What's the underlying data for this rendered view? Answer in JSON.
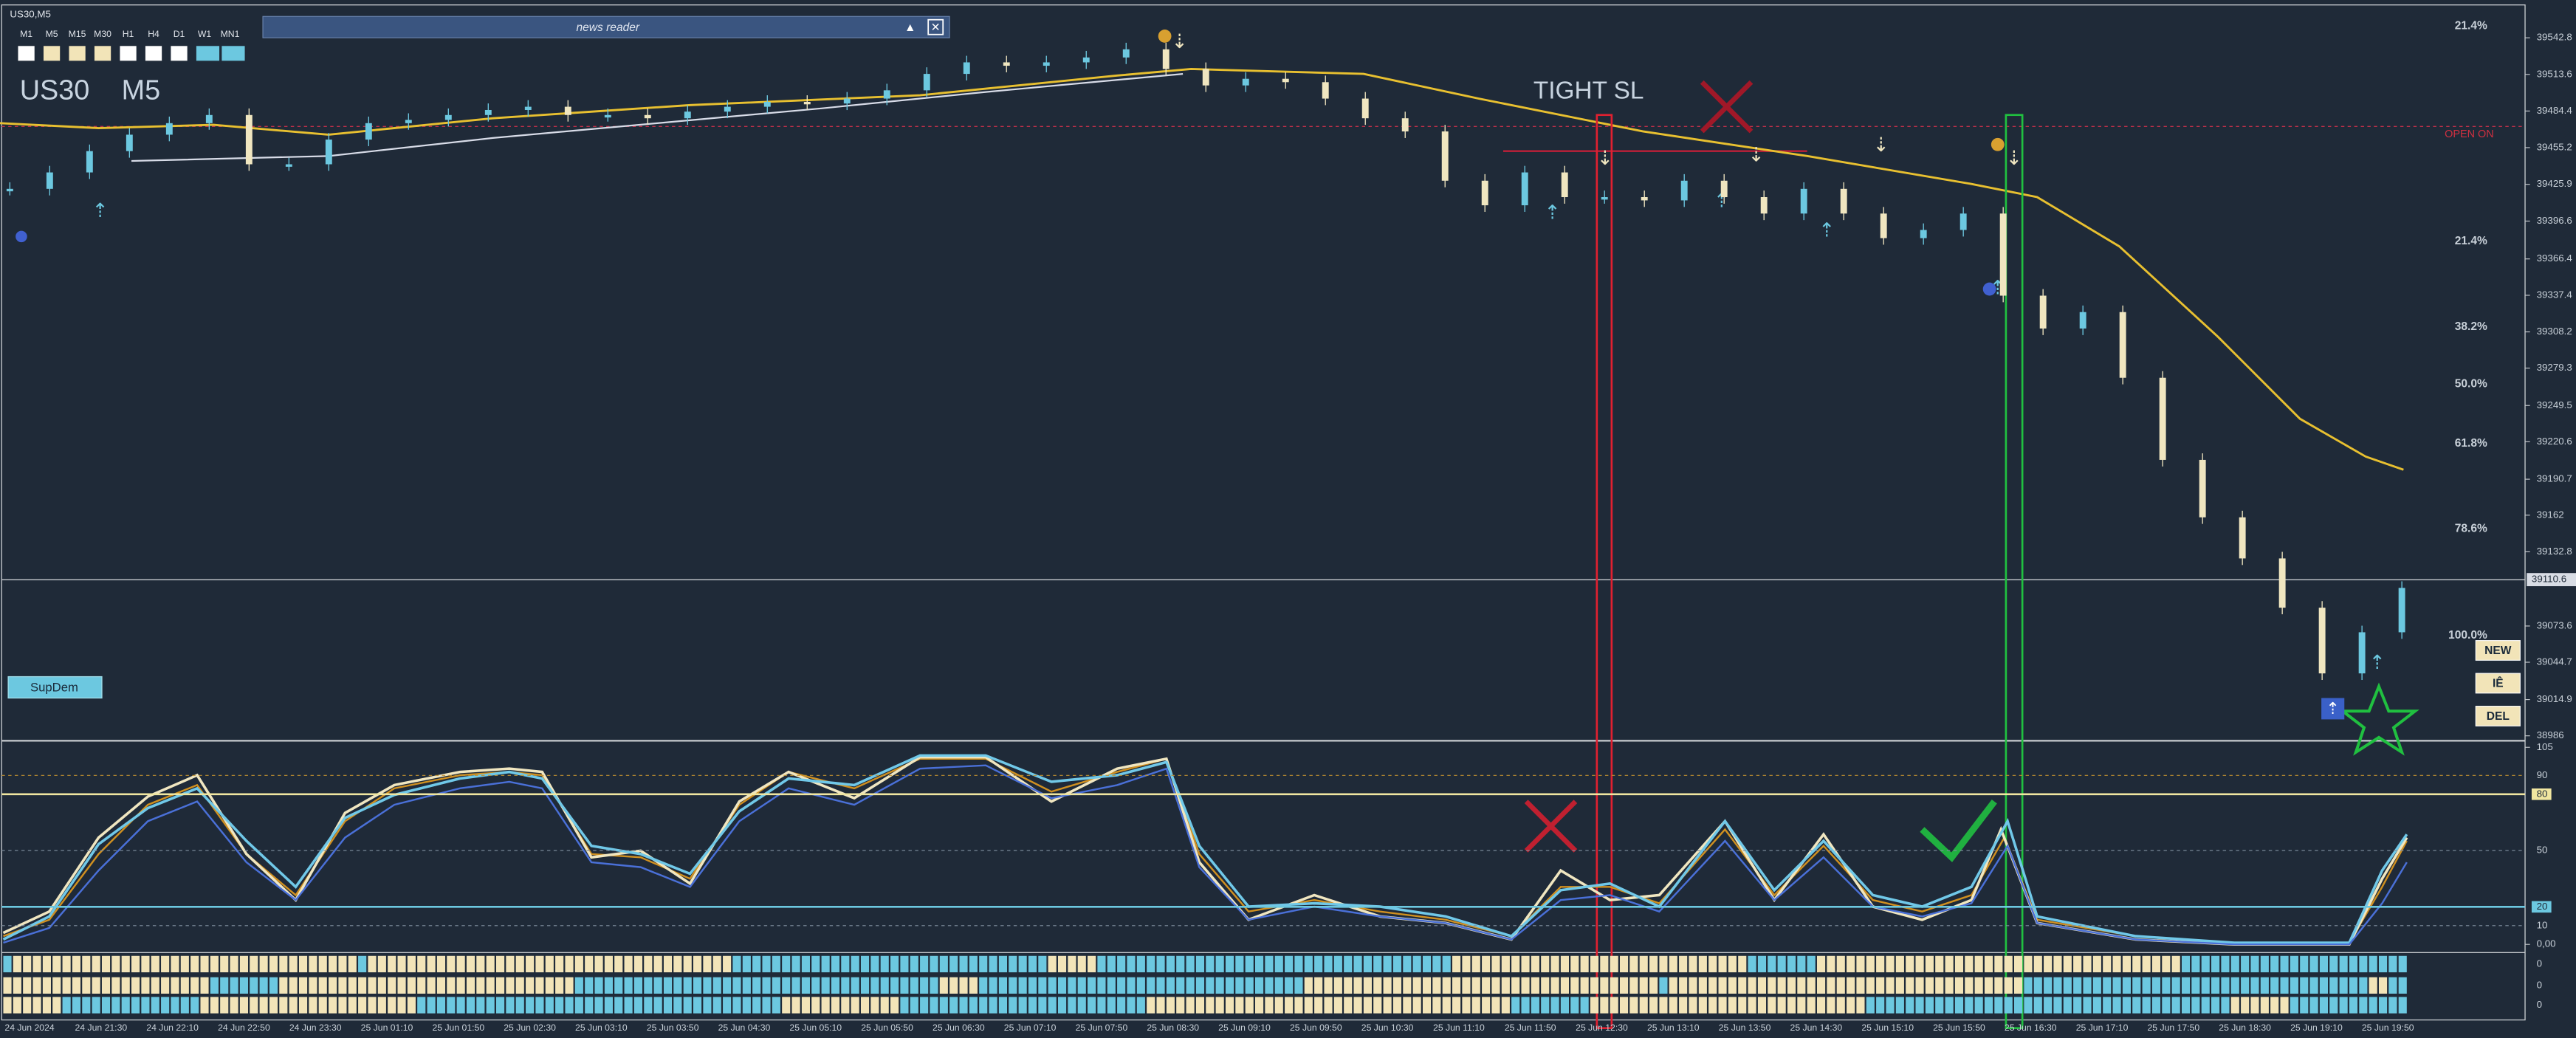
{
  "window_title": "US30,M5",
  "timeframes": [
    "M1",
    "M5",
    "M15",
    "M30",
    "H1",
    "H4",
    "D1",
    "W1",
    "MN1"
  ],
  "news_reader": "news reader",
  "symbol": "US30",
  "period": "M5",
  "annotation": "TIGHT SL",
  "open_label": "OPEN ON",
  "sup_dem": "SupDem",
  "buttons": [
    "NEW",
    "IÊ",
    "DEL"
  ],
  "price": {
    "ylim": [
      38983.4,
      39567.7
    ],
    "ticks": [
      39542.8,
      39513.6,
      39484.4,
      39455.2,
      39425.9,
      39396.6,
      39366.4,
      39337.4,
      39308.2,
      39279.3,
      39249.5,
      39220.6,
      39190.7,
      39162.0,
      39132.8,
      39073.6,
      39044.7,
      39014.9,
      38986.0
    ],
    "current": 39110.6,
    "closes": [
      39422.3,
      39435.4,
      39452.4,
      39465.5,
      39474.7,
      39481.2,
      39441.9,
      39441.9,
      39461.6,
      39474.7,
      39477.3,
      39481.2,
      39485.2,
      39487.8,
      39481.2,
      39481.2,
      39478.6,
      39483.9,
      39487.8,
      39491.7,
      39490.4,
      39494.3,
      39500.9,
      39514.0,
      39523.2,
      39520.5,
      39523.2,
      39527.1,
      39533.6,
      39517.9,
      39504.8,
      39510.1,
      39507.4,
      39494.3,
      39478.6,
      39468.1,
      39428.8,
      39409.2,
      39435.4,
      39415.7,
      39415.7,
      39413.1,
      39428.8,
      39415.7,
      39402.6,
      39422.3,
      39402.6,
      39383.0,
      39389.5,
      39402.6,
      39337.1,
      39310.9,
      39324.0,
      39271.6,
      39206.1,
      39160.3,
      39127.5,
      39088.2,
      39035.8,
      39068.6,
      39104.0
    ]
  },
  "fib_labels": [
    "21.4%",
    "21.4%",
    "38.2%",
    "50.0%",
    "61.8%",
    "78.6%",
    "100.0%"
  ],
  "oscillator": {
    "ylim": [
      0,
      105
    ],
    "ticks": [
      105,
      90,
      80,
      50,
      20,
      10,
      {
        "value": 0,
        "label": "0,00"
      }
    ]
  },
  "row_labels": [
    "0",
    "0",
    "0"
  ],
  "time_labels": [
    "24 Jun 2024",
    "24 Jun 21:30",
    "24 Jun 22:10",
    "24 Jun 22:50",
    "24 Jun 23:30",
    "25 Jun 01:10",
    "25 Jun 01:50",
    "25 Jun 02:30",
    "25 Jun 03:10",
    "25 Jun 03:50",
    "25 Jun 04:30",
    "25 Jun 05:10",
    "25 Jun 05:50",
    "25 Jun 06:30",
    "25 Jun 07:10",
    "25 Jun 07:50",
    "25 Jun 08:30",
    "25 Jun 09:10",
    "25 Jun 09:50",
    "25 Jun 10:30",
    "25 Jun 11:10",
    "25 Jun 11:50",
    "25 Jun 12:30",
    "25 Jun 13:10",
    "25 Jun 13:50",
    "25 Jun 14:30",
    "25 Jun 15:10",
    "25 Jun 15:50",
    "25 Jun 16:30",
    "25 Jun 17:10",
    "25 Jun 17:50",
    "25 Jun 18:30",
    "25 Jun 19:10",
    "25 Jun 19:50"
  ]
}
